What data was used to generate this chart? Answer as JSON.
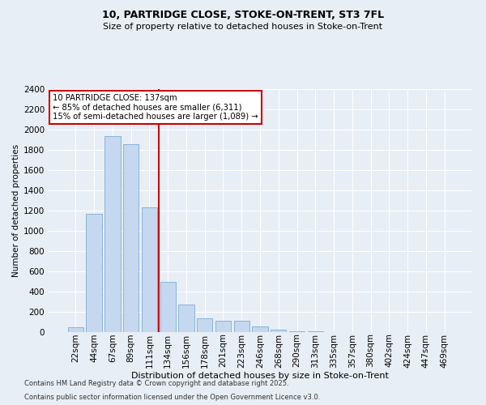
{
  "title1": "10, PARTRIDGE CLOSE, STOKE-ON-TRENT, ST3 7FL",
  "title2": "Size of property relative to detached houses in Stoke-on-Trent",
  "xlabel": "Distribution of detached houses by size in Stoke-on-Trent",
  "ylabel": "Number of detached properties",
  "categories": [
    "22sqm",
    "44sqm",
    "67sqm",
    "89sqm",
    "111sqm",
    "134sqm",
    "156sqm",
    "178sqm",
    "201sqm",
    "223sqm",
    "246sqm",
    "268sqm",
    "290sqm",
    "313sqm",
    "335sqm",
    "357sqm",
    "380sqm",
    "402sqm",
    "424sqm",
    "447sqm",
    "469sqm"
  ],
  "values": [
    50,
    1170,
    1940,
    1860,
    1230,
    500,
    270,
    140,
    110,
    110,
    60,
    25,
    10,
    5,
    3,
    2,
    2,
    1,
    1,
    1,
    1
  ],
  "bar_color": "#c5d8ef",
  "bar_edge_color": "#7aadd4",
  "vline_color": "#cc0000",
  "annotation_text": "10 PARTRIDGE CLOSE: 137sqm\n← 85% of detached houses are smaller (6,311)\n15% of semi-detached houses are larger (1,089) →",
  "annotation_box_color": "#ffffff",
  "annotation_box_edge": "#cc0000",
  "bg_color": "#e8eef5",
  "grid_color": "#ffffff",
  "footer1": "Contains HM Land Registry data © Crown copyright and database right 2025.",
  "footer2": "Contains public sector information licensed under the Open Government Licence v3.0.",
  "ylim": [
    0,
    2400
  ],
  "yticks": [
    0,
    200,
    400,
    600,
    800,
    1000,
    1200,
    1400,
    1600,
    1800,
    2000,
    2200,
    2400
  ],
  "title1_fontsize": 9,
  "title2_fontsize": 8,
  "ylabel_fontsize": 7.5,
  "xlabel_fontsize": 8,
  "tick_fontsize": 7.5,
  "footer_fontsize": 6
}
